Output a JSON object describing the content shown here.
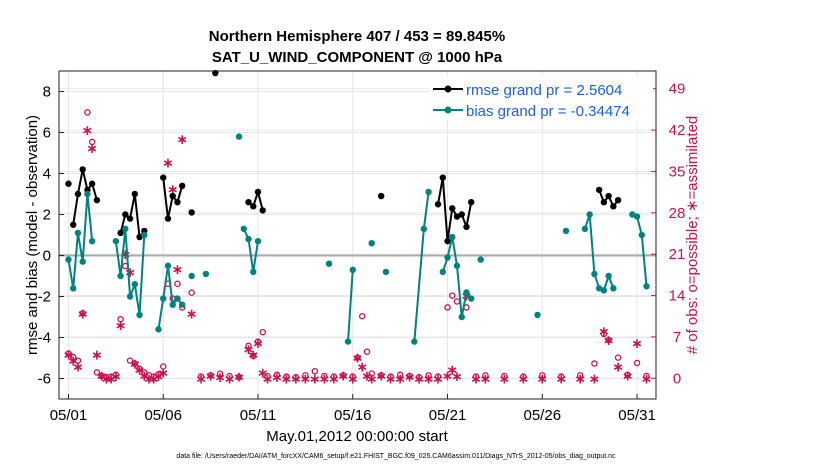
{
  "chart_data": {
    "type": "line",
    "title": "Northern Hemisphere 407 / 453 = 89.845%",
    "subtitle": "SAT_U_WIND_COMPONENT @ 1000 hPa",
    "xlabel": "May.01,2012 00:00:00 start",
    "ylabel": "rmse and bias (model - observation)",
    "ylabel_right": "# of obs: o=possible; ∗=assimilated",
    "footnote": "data file: /Users/raeder/DAI/ATM_forcXX/CAM6_setup/f.e21.FHIST_BGC.f09_025.CAM6assim.011/Diags_NTrS_2012-05/obs_diag_output.nc",
    "xlim": [
      0.5,
      32
    ],
    "ylim": [
      -7,
      9
    ],
    "ylim_right": [
      -3.5,
      52
    ],
    "grid": true,
    "x_tick_labels": [
      "05/01",
      "05/06",
      "05/11",
      "05/16",
      "05/21",
      "05/26",
      "05/31"
    ],
    "x_tick_values": [
      1,
      6,
      11,
      16,
      21,
      26,
      31
    ],
    "y_tick_labels": [
      "-6",
      "-4",
      "-2",
      "0",
      "2",
      "4",
      "6",
      "8"
    ],
    "y_tick_values": [
      -6,
      -4,
      -2,
      0,
      2,
      4,
      6,
      8
    ],
    "y_right_tick_labels": [
      "0",
      "7",
      "14",
      "21",
      "28",
      "35",
      "42",
      "49"
    ],
    "y_right_tick_values": [
      0,
      7,
      14,
      21,
      28,
      35,
      42,
      49
    ],
    "legend": {
      "position": "top-right",
      "entries": [
        "rmse grand pr = 2.5604",
        "bias grand pr = -0.34474"
      ]
    },
    "colors": {
      "rmse": "#000000",
      "bias": "#00827f",
      "obs": "#c8124e",
      "zero_line": "#aaaaaa",
      "grid": "#e6e6e6",
      "legend_text": "#1f5fd6"
    },
    "series": [
      {
        "name": "rmse",
        "segments": [
          [
            [
              1.25,
              1.5
            ],
            [
              1.5,
              3.0
            ],
            [
              1.75,
              4.2
            ],
            [
              2.0,
              3.2
            ],
            [
              2.25,
              3.5
            ],
            [
              2.5,
              2.7
            ]
          ],
          [
            [
              3.75,
              1.1
            ],
            [
              4.0,
              2.0
            ],
            [
              4.25,
              1.8
            ],
            [
              4.5,
              3.0
            ],
            [
              4.75,
              0.9
            ],
            [
              5.0,
              1.2
            ]
          ],
          [
            [
              6.0,
              3.8
            ],
            [
              6.25,
              1.8
            ],
            [
              6.5,
              2.9
            ],
            [
              6.75,
              2.6
            ],
            [
              7.0,
              3.4
            ]
          ],
          [
            [
              10.5,
              2.6
            ],
            [
              10.75,
              2.4
            ],
            [
              11.0,
              3.1
            ],
            [
              11.25,
              2.2
            ]
          ],
          [
            [
              20.5,
              2.5
            ],
            [
              20.75,
              3.8
            ],
            [
              21.0,
              0.7
            ],
            [
              21.25,
              2.3
            ],
            [
              21.5,
              1.9
            ],
            [
              21.75,
              2.0
            ],
            [
              22.0,
              1.4
            ],
            [
              22.25,
              2.6
            ]
          ],
          [
            [
              29.0,
              3.2
            ],
            [
              29.25,
              2.6
            ],
            [
              29.5,
              2.9
            ],
            [
              29.75,
              2.4
            ],
            [
              30.0,
              2.7
            ]
          ]
        ],
        "isolated": [
          [
            1.0,
            3.5
          ],
          [
            7.5,
            2.1
          ],
          [
            8.75,
            8.9
          ],
          [
            17.5,
            2.9
          ]
        ]
      },
      {
        "name": "bias",
        "segments": [
          [
            [
              1.0,
              -0.2
            ],
            [
              1.25,
              -1.6
            ],
            [
              1.5,
              1.1
            ],
            [
              1.75,
              -0.3
            ],
            [
              2.0,
              3.0
            ],
            [
              2.25,
              0.7
            ]
          ],
          [
            [
              3.5,
              0.7
            ],
            [
              3.75,
              -1.0
            ],
            [
              4.0,
              1.3
            ],
            [
              4.25,
              -2.0
            ],
            [
              4.5,
              -1.4
            ],
            [
              4.75,
              -2.9
            ],
            [
              5.0,
              1.0
            ]
          ],
          [
            [
              5.75,
              -3.6
            ],
            [
              6.0,
              -2.1
            ],
            [
              6.25,
              -0.5
            ],
            [
              6.5,
              -2.4
            ],
            [
              6.75,
              -2.1
            ],
            [
              7.0,
              -2.4
            ]
          ],
          [
            [
              10.25,
              1.3
            ],
            [
              10.5,
              0.8
            ],
            [
              10.75,
              -0.8
            ],
            [
              11.0,
              0.7
            ]
          ],
          [
            [
              15.75,
              -4.2
            ],
            [
              16.0,
              -0.7
            ]
          ],
          [
            [
              19.25,
              -4.2
            ],
            [
              19.75,
              1.3
            ],
            [
              20.0,
              3.1
            ]
          ],
          [
            [
              20.75,
              -0.8
            ],
            [
              21.0,
              -0.1
            ],
            [
              21.25,
              0.9
            ],
            [
              21.5,
              -0.5
            ],
            [
              21.75,
              -3.0
            ],
            [
              22.0,
              -1.8
            ],
            [
              22.25,
              -2.1
            ]
          ],
          [
            [
              28.25,
              1.3
            ],
            [
              28.5,
              2.0
            ],
            [
              28.75,
              -0.9
            ],
            [
              29.0,
              -1.6
            ],
            [
              29.25,
              -1.7
            ],
            [
              29.5,
              -1.0
            ],
            [
              29.75,
              -1.6
            ]
          ],
          [
            [
              30.75,
              2.0
            ],
            [
              31.0,
              1.9
            ],
            [
              31.25,
              1.0
            ],
            [
              31.5,
              -1.5
            ]
          ]
        ],
        "isolated": [
          [
            7.5,
            -1.0
          ],
          [
            8.25,
            -0.9
          ],
          [
            10.0,
            5.8
          ],
          [
            14.75,
            -0.4
          ],
          [
            17.0,
            0.6
          ],
          [
            17.75,
            -0.8
          ],
          [
            22.75,
            -0.2
          ],
          [
            25.75,
            -2.9
          ],
          [
            27.25,
            1.2
          ]
        ]
      }
    ],
    "obs_possible": [
      [
        1.0,
        4.2
      ],
      [
        1.25,
        3.6
      ],
      [
        1.5,
        3.0
      ],
      [
        1.75,
        11.0
      ],
      [
        2.0,
        45.0
      ],
      [
        2.25,
        40.0
      ],
      [
        2.5,
        1.0
      ],
      [
        2.75,
        0.4
      ],
      [
        3.0,
        0.2
      ],
      [
        3.25,
        0.3
      ],
      [
        3.5,
        0.6
      ],
      [
        3.75,
        10.0
      ],
      [
        4.0,
        19.0
      ],
      [
        4.25,
        3.0
      ],
      [
        4.5,
        2.5
      ],
      [
        4.75,
        1.6
      ],
      [
        5.0,
        1.0
      ],
      [
        5.25,
        0.5
      ],
      [
        5.5,
        0.3
      ],
      [
        5.75,
        0.7
      ],
      [
        6.0,
        2.0
      ],
      [
        6.25,
        16.0
      ],
      [
        6.5,
        13.5
      ],
      [
        6.75,
        16.0
      ],
      [
        7.0,
        12.0
      ],
      [
        7.5,
        14.5
      ],
      [
        8.0,
        0.3
      ],
      [
        8.5,
        0.5
      ],
      [
        9.0,
        0.8
      ],
      [
        9.5,
        0.4
      ],
      [
        10.0,
        0.2
      ],
      [
        10.5,
        5.5
      ],
      [
        10.75,
        3.8
      ],
      [
        11.0,
        6.2
      ],
      [
        11.25,
        7.8
      ],
      [
        11.5,
        0.4
      ],
      [
        12.0,
        0.6
      ],
      [
        12.5,
        0.3
      ],
      [
        13.0,
        0.2
      ],
      [
        13.5,
        0.5
      ],
      [
        14.0,
        1.2
      ],
      [
        14.5,
        0.4
      ],
      [
        15.0,
        0.3
      ],
      [
        15.5,
        0.5
      ],
      [
        16.0,
        0.3
      ],
      [
        16.25,
        3.5
      ],
      [
        16.5,
        10.5
      ],
      [
        16.75,
        4.5
      ],
      [
        17.0,
        0.8
      ],
      [
        17.5,
        0.5
      ],
      [
        18.0,
        0.3
      ],
      [
        18.5,
        0.6
      ],
      [
        19.0,
        0.4
      ],
      [
        19.5,
        0.2
      ],
      [
        20.0,
        0.5
      ],
      [
        20.5,
        0.3
      ],
      [
        21.0,
        12.0
      ],
      [
        21.25,
        14.0
      ],
      [
        21.5,
        13.0
      ],
      [
        22.0,
        12.0
      ],
      [
        22.5,
        0.3
      ],
      [
        23.0,
        0.5
      ],
      [
        24.0,
        0.4
      ],
      [
        25.0,
        0.3
      ],
      [
        26.0,
        0.5
      ],
      [
        27.0,
        0.3
      ],
      [
        28.0,
        0.5
      ],
      [
        28.75,
        2.5
      ],
      [
        29.25,
        7.5
      ],
      [
        29.5,
        6.5
      ],
      [
        30.0,
        3.5
      ],
      [
        30.5,
        0.6
      ],
      [
        31.0,
        2.6
      ],
      [
        31.5,
        0.4
      ]
    ],
    "obs_assimilated": [
      [
        1.0,
        4.0
      ],
      [
        1.25,
        3.0
      ],
      [
        1.5,
        2.0
      ],
      [
        1.75,
        11.0
      ],
      [
        2.0,
        42.0
      ],
      [
        2.25,
        39.0
      ],
      [
        2.5,
        4.0
      ],
      [
        2.75,
        0.5
      ],
      [
        3.0,
        0.0
      ],
      [
        3.25,
        0.0
      ],
      [
        3.5,
        0.4
      ],
      [
        3.75,
        9.0
      ],
      [
        4.0,
        21.0
      ],
      [
        4.25,
        18.0
      ],
      [
        4.5,
        2.5
      ],
      [
        4.75,
        1.5
      ],
      [
        5.0,
        0.5
      ],
      [
        5.25,
        0.0
      ],
      [
        5.5,
        0.0
      ],
      [
        5.75,
        0.4
      ],
      [
        6.0,
        1.0
      ],
      [
        6.25,
        36.5
      ],
      [
        6.5,
        32.0
      ],
      [
        6.75,
        18.5
      ],
      [
        7.0,
        40.5
      ],
      [
        7.5,
        11.0
      ],
      [
        8.0,
        0.0
      ],
      [
        8.5,
        0.5
      ],
      [
        9.0,
        0.2
      ],
      [
        9.5,
        0.0
      ],
      [
        10.0,
        0.3
      ],
      [
        10.5,
        5.0
      ],
      [
        10.75,
        4.0
      ],
      [
        11.0,
        6.0
      ],
      [
        11.25,
        1.0
      ],
      [
        11.5,
        0.0
      ],
      [
        12.0,
        0.2
      ],
      [
        12.5,
        0.0
      ],
      [
        13.0,
        0.0
      ],
      [
        13.5,
        0.0
      ],
      [
        14.0,
        0.0
      ],
      [
        14.5,
        0.0
      ],
      [
        15.0,
        0.0
      ],
      [
        15.5,
        0.5
      ],
      [
        16.0,
        0.0
      ],
      [
        16.25,
        3.5
      ],
      [
        16.5,
        2.0
      ],
      [
        16.75,
        0.5
      ],
      [
        17.0,
        0.0
      ],
      [
        17.5,
        0.5
      ],
      [
        18.0,
        0.0
      ],
      [
        18.5,
        0.0
      ],
      [
        19.0,
        0.3
      ],
      [
        19.5,
        0.0
      ],
      [
        20.0,
        0.0
      ],
      [
        20.5,
        0.0
      ],
      [
        21.0,
        0.5
      ],
      [
        21.25,
        1.5
      ],
      [
        21.5,
        0.4
      ],
      [
        22.0,
        14.0
      ],
      [
        22.5,
        0.0
      ],
      [
        23.0,
        0.0
      ],
      [
        24.0,
        0.0
      ],
      [
        25.0,
        0.0
      ],
      [
        26.0,
        0.0
      ],
      [
        27.0,
        0.0
      ],
      [
        28.0,
        0.0
      ],
      [
        28.75,
        0.0
      ],
      [
        29.25,
        8.0
      ],
      [
        29.5,
        6.5
      ],
      [
        30.0,
        2.0
      ],
      [
        30.5,
        0.5
      ],
      [
        31.0,
        6.0
      ],
      [
        31.5,
        0.0
      ]
    ]
  }
}
